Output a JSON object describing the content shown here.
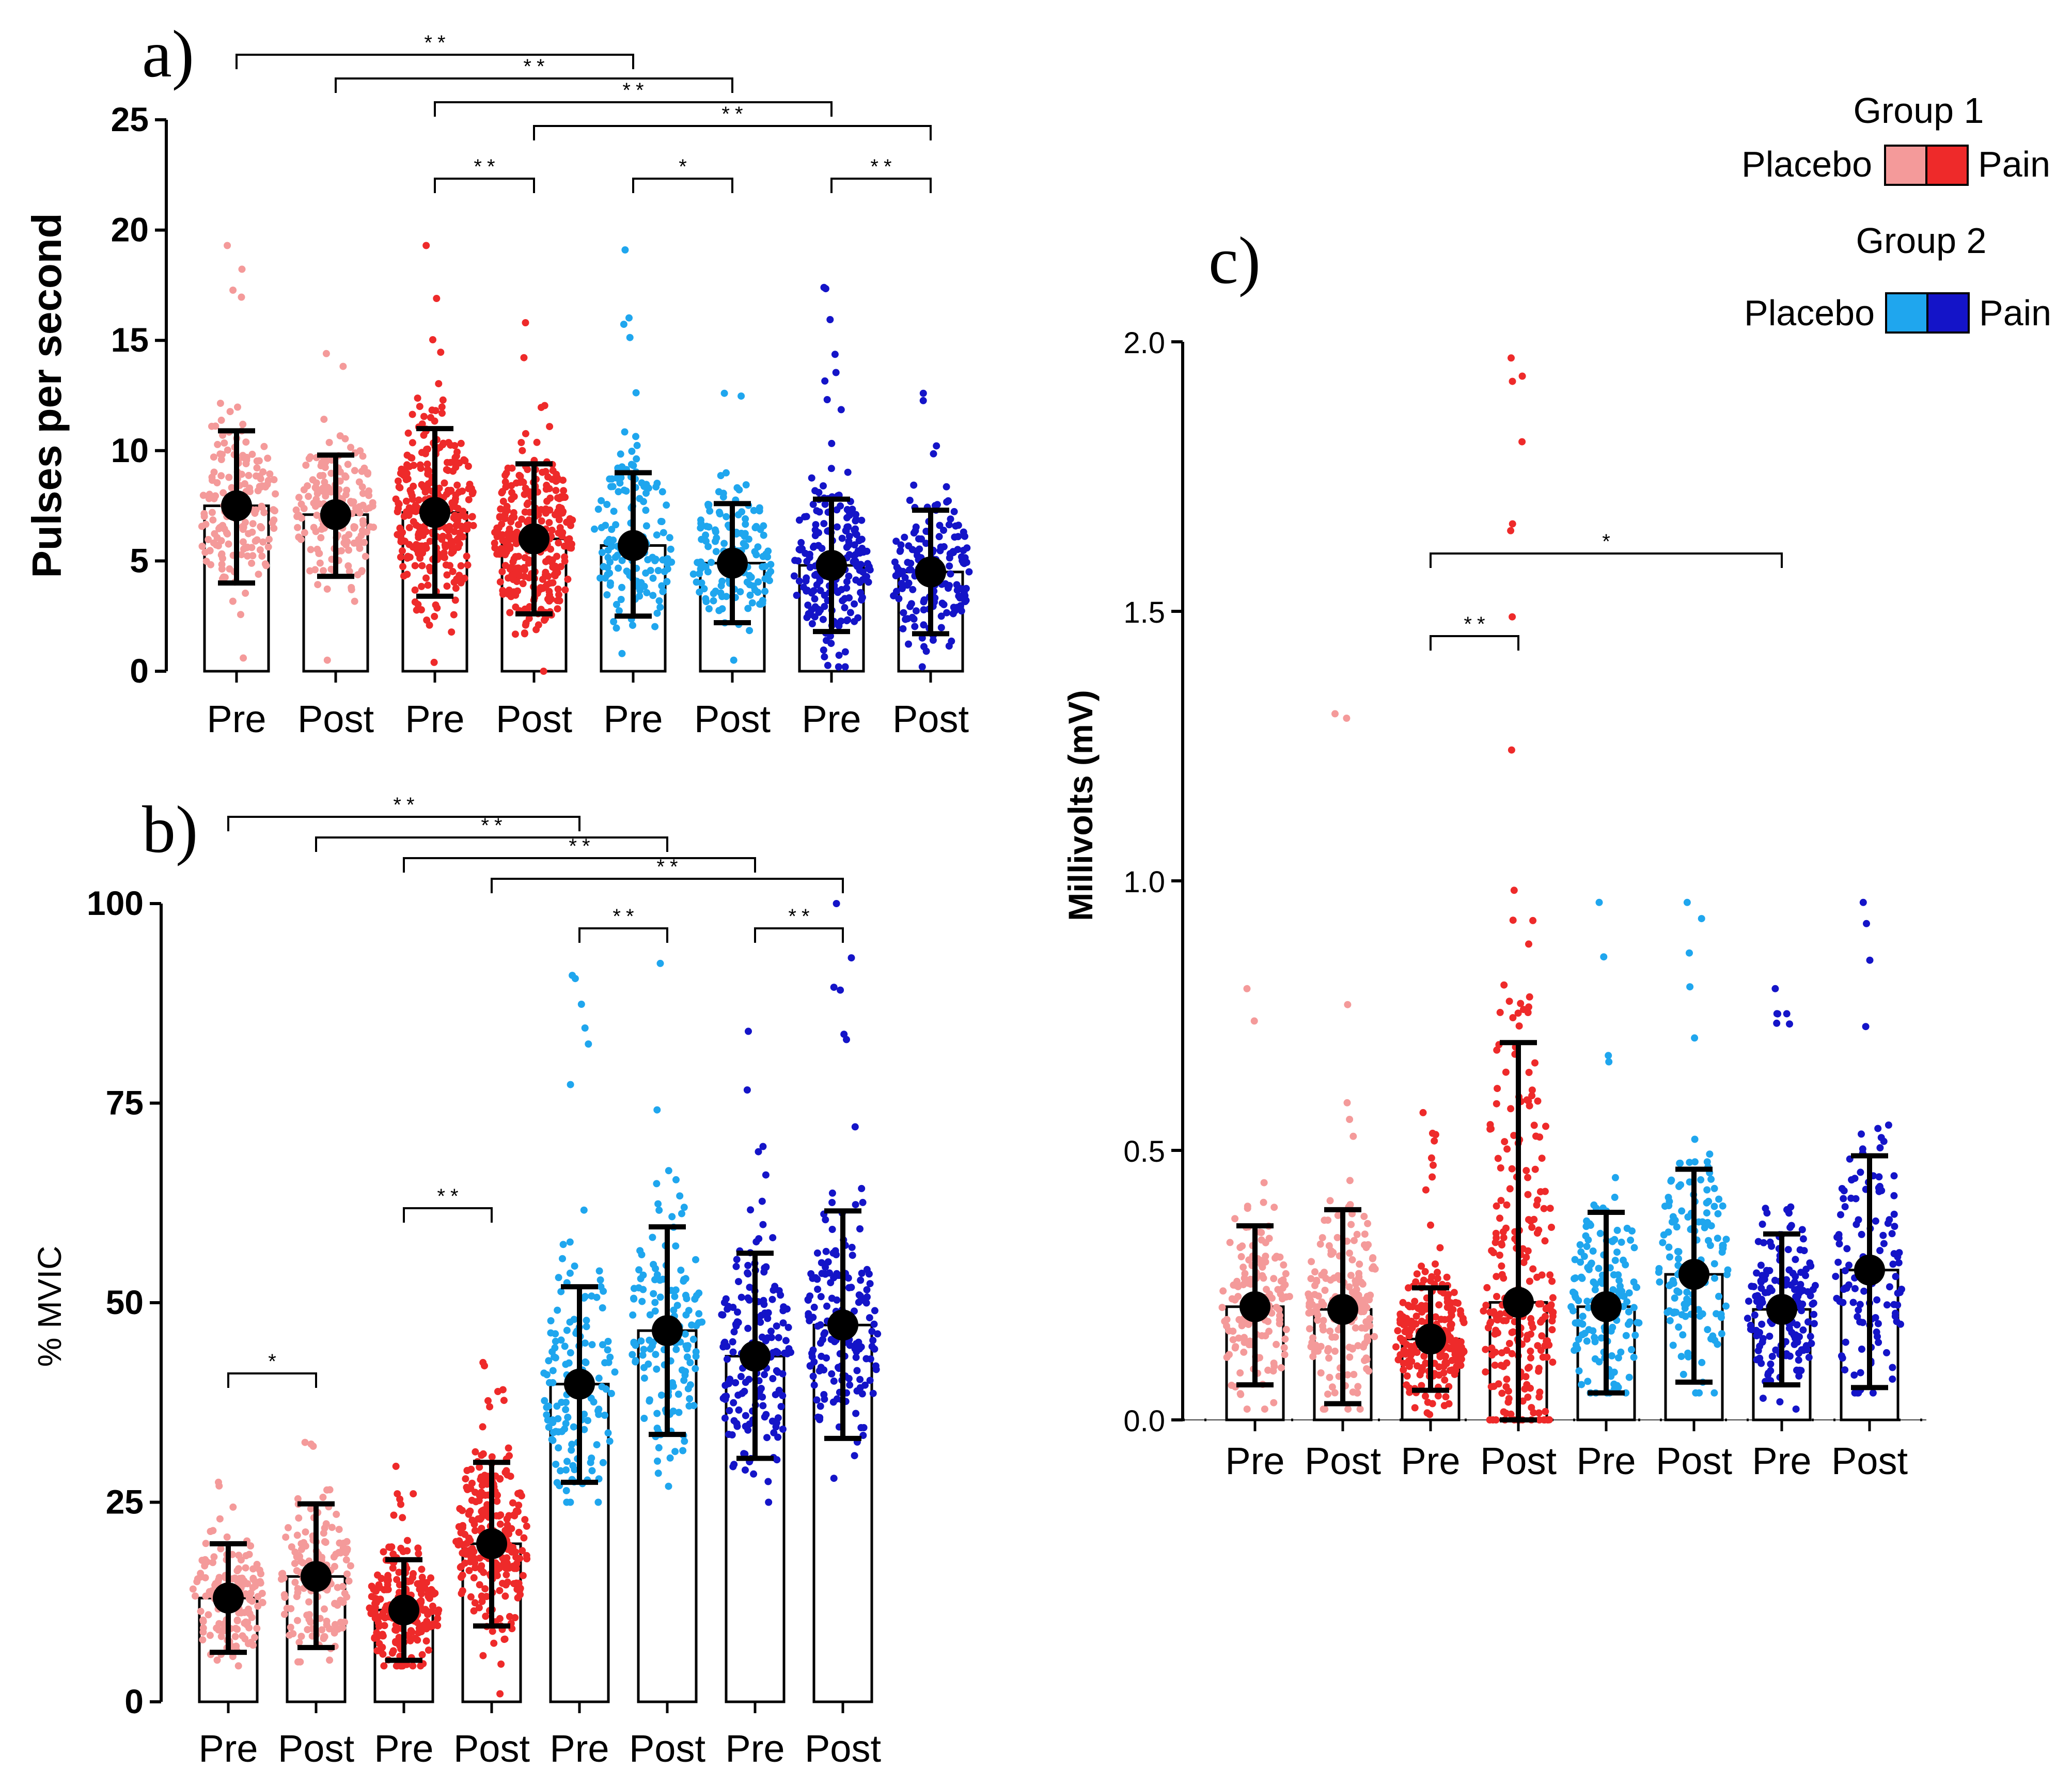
{
  "colors": {
    "group1_placebo": "#F49A9A",
    "group1_pain": "#EE2A2A",
    "group2_placebo": "#1FA6EE",
    "group2_pain": "#1414C8",
    "mean_marker": "#000000"
  },
  "legend": {
    "group1_title": "Group 1",
    "group2_title": "Group 2",
    "placebo_label": "Placebo",
    "pain_label": "Pain"
  },
  "chart_data": [
    {
      "id": "a",
      "panel_label": "a)",
      "type": "bar",
      "ylabel": "Pulses per second",
      "ylim": [
        0,
        25
      ],
      "yticks": [
        "0",
        "5",
        "10",
        "15",
        "20",
        "25"
      ],
      "categories": [
        "Pre",
        "Post",
        "Pre",
        "Post",
        "Pre",
        "Post",
        "Pre",
        "Post"
      ],
      "color_keys": [
        "group1_placebo",
        "group1_placebo",
        "group1_pain",
        "group1_pain",
        "group2_placebo",
        "group2_placebo",
        "group2_pain",
        "group2_pain"
      ],
      "values": [
        7.5,
        7.1,
        7.2,
        6.0,
        5.7,
        4.9,
        4.8,
        4.5
      ],
      "sd_low": [
        4.0,
        4.3,
        3.4,
        2.6,
        2.5,
        2.2,
        1.8,
        1.7
      ],
      "sd_high": [
        10.9,
        9.8,
        11.0,
        9.4,
        9.0,
        7.6,
        7.8,
        7.3
      ],
      "point_min": [
        0.6,
        0.5,
        0.4,
        0.0,
        0.8,
        0.5,
        0.2,
        0.2
      ],
      "point_max": [
        19.3,
        14.4,
        19.3,
        15.8,
        19.1,
        12.6,
        17.4,
        12.6
      ],
      "point_counts": [
        170,
        170,
        280,
        300,
        150,
        140,
        200,
        170
      ],
      "significance": [
        {
          "from": 0,
          "to": 4,
          "label": "**"
        },
        {
          "from": 1,
          "to": 5,
          "label": "**"
        },
        {
          "from": 2,
          "to": 6,
          "label": "**"
        },
        {
          "from": 3,
          "to": 7,
          "label": "**"
        },
        {
          "from": 2,
          "to": 3,
          "label": "**"
        },
        {
          "from": 4,
          "to": 5,
          "label": "*"
        },
        {
          "from": 6,
          "to": 7,
          "label": "**"
        }
      ]
    },
    {
      "id": "b",
      "panel_label": "b)",
      "type": "bar",
      "ylabel": "% MVIC",
      "ylim": [
        0,
        100
      ],
      "yticks": [
        "0",
        "25",
        "50",
        "75",
        "100"
      ],
      "categories": [
        "Pre",
        "Post",
        "Pre",
        "Post",
        "Pre",
        "Post",
        "Pre",
        "Post"
      ],
      "color_keys": [
        "group1_placebo",
        "group1_placebo",
        "group1_pain",
        "group1_pain",
        "group2_placebo",
        "group2_placebo",
        "group2_pain",
        "group2_pain"
      ],
      "values": [
        13,
        15.7,
        11.5,
        19.8,
        39.8,
        46.5,
        43.3,
        47.2
      ],
      "sd_low": [
        6.2,
        6.8,
        5.2,
        9.5,
        27.5,
        33.5,
        30.5,
        33.0
      ],
      "sd_high": [
        19.8,
        24.8,
        17.8,
        30.0,
        52.0,
        59.5,
        56.2,
        61.5
      ],
      "point_min": [
        4.5,
        5.0,
        4.5,
        1.0,
        25.0,
        27.0,
        25.0,
        28.0
      ],
      "point_max": [
        27.5,
        32.5,
        29.5,
        42.5,
        91.0,
        92.5,
        84.0,
        100.0
      ],
      "point_counts": [
        150,
        150,
        220,
        240,
        140,
        140,
        170,
        170
      ],
      "significance": [
        {
          "from": 0,
          "to": 4,
          "label": "**"
        },
        {
          "from": 1,
          "to": 5,
          "label": "**"
        },
        {
          "from": 2,
          "to": 6,
          "label": "**"
        },
        {
          "from": 3,
          "to": 7,
          "label": "**"
        },
        {
          "from": 4,
          "to": 5,
          "label": "**"
        },
        {
          "from": 6,
          "to": 7,
          "label": "**"
        },
        {
          "from": 2,
          "to": 3,
          "label": "**"
        },
        {
          "from": 0,
          "to": 1,
          "label": "*"
        }
      ]
    },
    {
      "id": "c",
      "panel_label": "c)",
      "type": "bar",
      "ylabel": "Millivolts (mV)",
      "ylim": [
        0,
        2.0
      ],
      "yticks": [
        "0.0",
        "0.5",
        "1.0",
        "1.5",
        "2.0"
      ],
      "categories": [
        "Pre",
        "Post",
        "Pre",
        "Post",
        "Pre",
        "Post",
        "Pre",
        "Post"
      ],
      "color_keys": [
        "group1_placebo",
        "group1_placebo",
        "group1_pain",
        "group1_pain",
        "group2_placebo",
        "group2_placebo",
        "group2_pain",
        "group2_pain"
      ],
      "values": [
        0.21,
        0.205,
        0.15,
        0.218,
        0.21,
        0.27,
        0.205,
        0.278
      ],
      "sd_low": [
        0.065,
        0.03,
        0.055,
        0.0,
        0.05,
        0.07,
        0.065,
        0.06
      ],
      "sd_high": [
        0.36,
        0.39,
        0.245,
        0.7,
        0.385,
        0.465,
        0.345,
        0.49
      ],
      "point_min": [
        0.02,
        0.02,
        0.01,
        0.0,
        0.05,
        0.05,
        0.02,
        0.05
      ],
      "point_max": [
        0.8,
        1.31,
        0.57,
        1.97,
        0.96,
        0.96,
        0.8,
        0.96
      ],
      "point_counts": [
        150,
        170,
        220,
        250,
        150,
        140,
        170,
        120
      ],
      "significance": [
        {
          "from": 2,
          "to": 6,
          "label": "*"
        },
        {
          "from": 2,
          "to": 3,
          "label": "**"
        }
      ]
    }
  ]
}
